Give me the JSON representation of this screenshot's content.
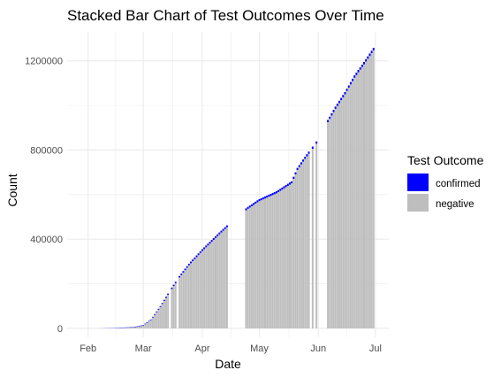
{
  "chart_data": {
    "type": "bar",
    "stacked": true,
    "title": "Stacked Bar Chart of Test Outcomes Over Time",
    "xlabel": "Date",
    "ylabel": "Count",
    "x_range": [
      "2020-01-21",
      "2020-07-08"
    ],
    "x_ticks": [
      {
        "date": "2020-02-01",
        "label": "Feb"
      },
      {
        "date": "2020-03-01",
        "label": "Mar"
      },
      {
        "date": "2020-04-01",
        "label": "Apr"
      },
      {
        "date": "2020-05-01",
        "label": "May"
      },
      {
        "date": "2020-06-01",
        "label": "Jun"
      },
      {
        "date": "2020-07-01",
        "label": "Jul"
      }
    ],
    "ylim": [
      -40000,
      1330000
    ],
    "y_ticks": [
      {
        "value": 0,
        "label": "0"
      },
      {
        "value": 400000,
        "label": "400000"
      },
      {
        "value": 800000,
        "label": "800000"
      },
      {
        "value": 1200000,
        "label": "1200000"
      }
    ],
    "grid": true,
    "legend": {
      "title": "Test Outcome",
      "position": "right",
      "entries": [
        {
          "name": "confirmed",
          "color": "#0000FF"
        },
        {
          "name": "negative",
          "color": "#BEBEBE"
        }
      ]
    },
    "start_date": "2020-02-05",
    "end_date": "2020-06-30",
    "missing_dates": [
      "2020-03-15",
      "2020-03-19",
      "2020-04-15",
      "2020-04-16",
      "2020-04-17",
      "2020-04-18",
      "2020-04-19",
      "2020-04-20",
      "2020-04-21",
      "2020-04-22",
      "2020-04-23",
      "2020-05-28",
      "2020-05-30",
      "2020-06-01",
      "2020-06-02",
      "2020-06-03",
      "2020-06-04",
      "2020-06-05"
    ],
    "total_anchors": [
      {
        "date": "2020-02-05",
        "value": 0
      },
      {
        "date": "2020-02-15",
        "value": 2000
      },
      {
        "date": "2020-02-25",
        "value": 6000
      },
      {
        "date": "2020-03-01",
        "value": 15000
      },
      {
        "date": "2020-03-05",
        "value": 40000
      },
      {
        "date": "2020-03-10",
        "value": 100000
      },
      {
        "date": "2020-03-15",
        "value": 170000
      },
      {
        "date": "2020-03-20",
        "value": 235000
      },
      {
        "date": "2020-03-25",
        "value": 290000
      },
      {
        "date": "2020-04-01",
        "value": 355000
      },
      {
        "date": "2020-04-10",
        "value": 430000
      },
      {
        "date": "2020-04-20",
        "value": 510000
      },
      {
        "date": "2020-04-25",
        "value": 545000
      },
      {
        "date": "2020-05-01",
        "value": 580000
      },
      {
        "date": "2020-05-10",
        "value": 615000
      },
      {
        "date": "2020-05-18",
        "value": 660000
      },
      {
        "date": "2020-05-21",
        "value": 720000
      },
      {
        "date": "2020-05-25",
        "value": 770000
      },
      {
        "date": "2020-06-01",
        "value": 850000
      },
      {
        "date": "2020-06-05",
        "value": 920000
      },
      {
        "date": "2020-06-10",
        "value": 995000
      },
      {
        "date": "2020-06-15",
        "value": 1060000
      },
      {
        "date": "2020-06-20",
        "value": 1135000
      },
      {
        "date": "2020-06-25",
        "value": 1195000
      },
      {
        "date": "2020-06-30",
        "value": 1258000
      }
    ],
    "confirmed_anchors": [
      {
        "date": "2020-02-05",
        "value": 0
      },
      {
        "date": "2020-03-05",
        "value": 3000
      },
      {
        "date": "2020-03-15",
        "value": 6000
      },
      {
        "date": "2020-04-01",
        "value": 8000
      },
      {
        "date": "2020-05-01",
        "value": 9000
      },
      {
        "date": "2020-06-01",
        "value": 10000
      },
      {
        "date": "2020-06-30",
        "value": 11000
      }
    ]
  }
}
